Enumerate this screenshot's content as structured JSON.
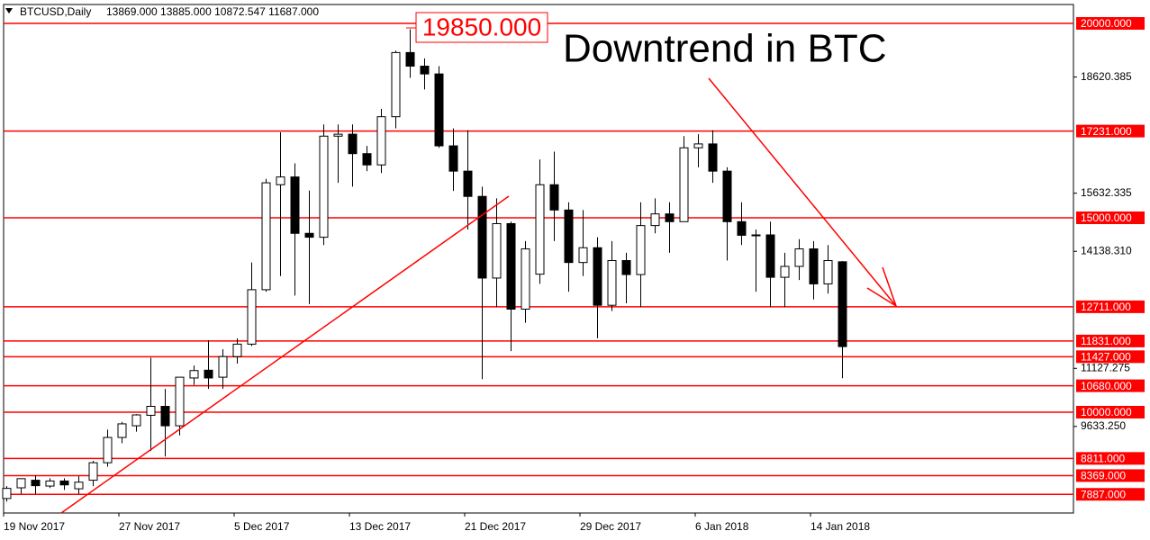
{
  "chart_data": {
    "type": "candlestick",
    "title": "BTCUSD,Daily",
    "subtitle": "13869.000 13885.000 10872.547 11687.000",
    "annotations": [
      "19850.000",
      "Downtrend in BTC"
    ],
    "categories": [
      "19 Nov 2017",
      null,
      null,
      null,
      null,
      null,
      null,
      null,
      "27 Nov 2017",
      null,
      null,
      null,
      null,
      null,
      null,
      null,
      "5 Dec 2017",
      null,
      null,
      null,
      null,
      null,
      null,
      null,
      "13 Dec 2017",
      null,
      null,
      null,
      null,
      null,
      null,
      null,
      "21 Dec 2017",
      null,
      null,
      null,
      null,
      null,
      null,
      null,
      "29 Dec 2017",
      null,
      null,
      null,
      null,
      null,
      null,
      null,
      "6 Jan 2018",
      null,
      null,
      null,
      null,
      null,
      null,
      null,
      "14 Jan 2018",
      null,
      null
    ],
    "open": [
      7780,
      8055,
      8250,
      8100,
      8230,
      8030,
      8250,
      8700,
      9350,
      9650,
      9920,
      10150,
      9650,
      10880,
      11080,
      10900,
      11430,
      11750,
      13150,
      15850,
      16050,
      14600,
      14500,
      17100,
      17150,
      16650,
      16360,
      17600,
      19250,
      18900,
      18700,
      16850,
      16200,
      15550,
      13450,
      14850,
      12650,
      13550,
      15850,
      15200,
      13850,
      14230,
      12750,
      13900,
      13540,
      14800,
      15100,
      14900,
      16800,
      16900,
      16200,
      14900,
      14550,
      14560,
      13470,
      13750,
      14200,
      13300,
      13869
    ],
    "high": [
      8100,
      8300,
      8370,
      8300,
      8300,
      8350,
      8750,
      9550,
      9750,
      9950,
      11400,
      10600,
      10900,
      11200,
      11850,
      11620,
      11900,
      13850,
      16000,
      17200,
      16400,
      15700,
      17400,
      17400,
      17400,
      16850,
      17800,
      19300,
      19850,
      19100,
      18900,
      17300,
      17250,
      15800,
      15500,
      14900,
      14400,
      16500,
      16700,
      15400,
      15200,
      14500,
      14400,
      14100,
      15400,
      15500,
      15400,
      17100,
      17150,
      17250,
      16300,
      15400,
      14700,
      14900,
      14100,
      14450,
      14400,
      14300,
      13885
    ],
    "low": [
      7700,
      7900,
      7900,
      8050,
      8000,
      7900,
      8100,
      8600,
      9200,
      9500,
      9000,
      8860,
      9400,
      10700,
      10600,
      10600,
      11250,
      11700,
      13100,
      13500,
      13000,
      12780,
      14300,
      15900,
      15800,
      16200,
      16150,
      17300,
      18600,
      18300,
      16800,
      15690,
      14700,
      10850,
      12700,
      11570,
      12300,
      13300,
      14400,
      13100,
      13500,
      11900,
      12600,
      12800,
      12700,
      14600,
      14100,
      14900,
      16300,
      15900,
      13900,
      14300,
      13100,
      12700,
      12700,
      13400,
      12900,
      13050,
      10872.547
    ],
    "close": [
      8040,
      8290,
      8110,
      8230,
      8130,
      8200,
      8700,
      9350,
      9700,
      9930,
      10150,
      9650,
      10900,
      11070,
      10880,
      11430,
      11750,
      13150,
      15900,
      16050,
      14600,
      14500,
      17100,
      17150,
      16650,
      16360,
      17600,
      19250,
      18900,
      18700,
      16850,
      16200,
      15550,
      13450,
      14850,
      12650,
      14200,
      15850,
      15200,
      13850,
      14230,
      12750,
      13900,
      13540,
      14800,
      15100,
      14900,
      16800,
      16900,
      16200,
      14900,
      14550,
      14560,
      13470,
      13750,
      14200,
      13300,
      13900,
      11687
    ],
    "levels": [
      {
        "value": 20000,
        "label": "20000.000"
      },
      {
        "value": 17231,
        "label": "17231.000"
      },
      {
        "value": 15000,
        "label": "15000.000"
      },
      {
        "value": 12711,
        "label": "12711.000"
      },
      {
        "value": 11831,
        "label": "11831.000"
      },
      {
        "value": 11427,
        "label": "11427.000"
      },
      {
        "value": 10680,
        "label": "10680.000"
      },
      {
        "value": 10000,
        "label": "10000.000"
      },
      {
        "value": 8811,
        "label": "8811.000"
      },
      {
        "value": 8369,
        "label": "8369.000"
      },
      {
        "value": 7887,
        "label": "7887.000"
      }
    ],
    "level_color": "#ff0000",
    "up_color": "#ffffff",
    "down_color": "#000000",
    "ylim": [
      7407,
      20486
    ],
    "yticks": [
      {
        "value": 18620.385,
        "label": "18620.385"
      },
      {
        "value": 15632.335,
        "label": "15632.335"
      },
      {
        "value": 14138.31,
        "label": "14138.310"
      },
      {
        "value": 11127.275,
        "label": "11127.275"
      },
      {
        "value": 9633.25,
        "label": "9633.250"
      }
    ],
    "grid": false
  }
}
